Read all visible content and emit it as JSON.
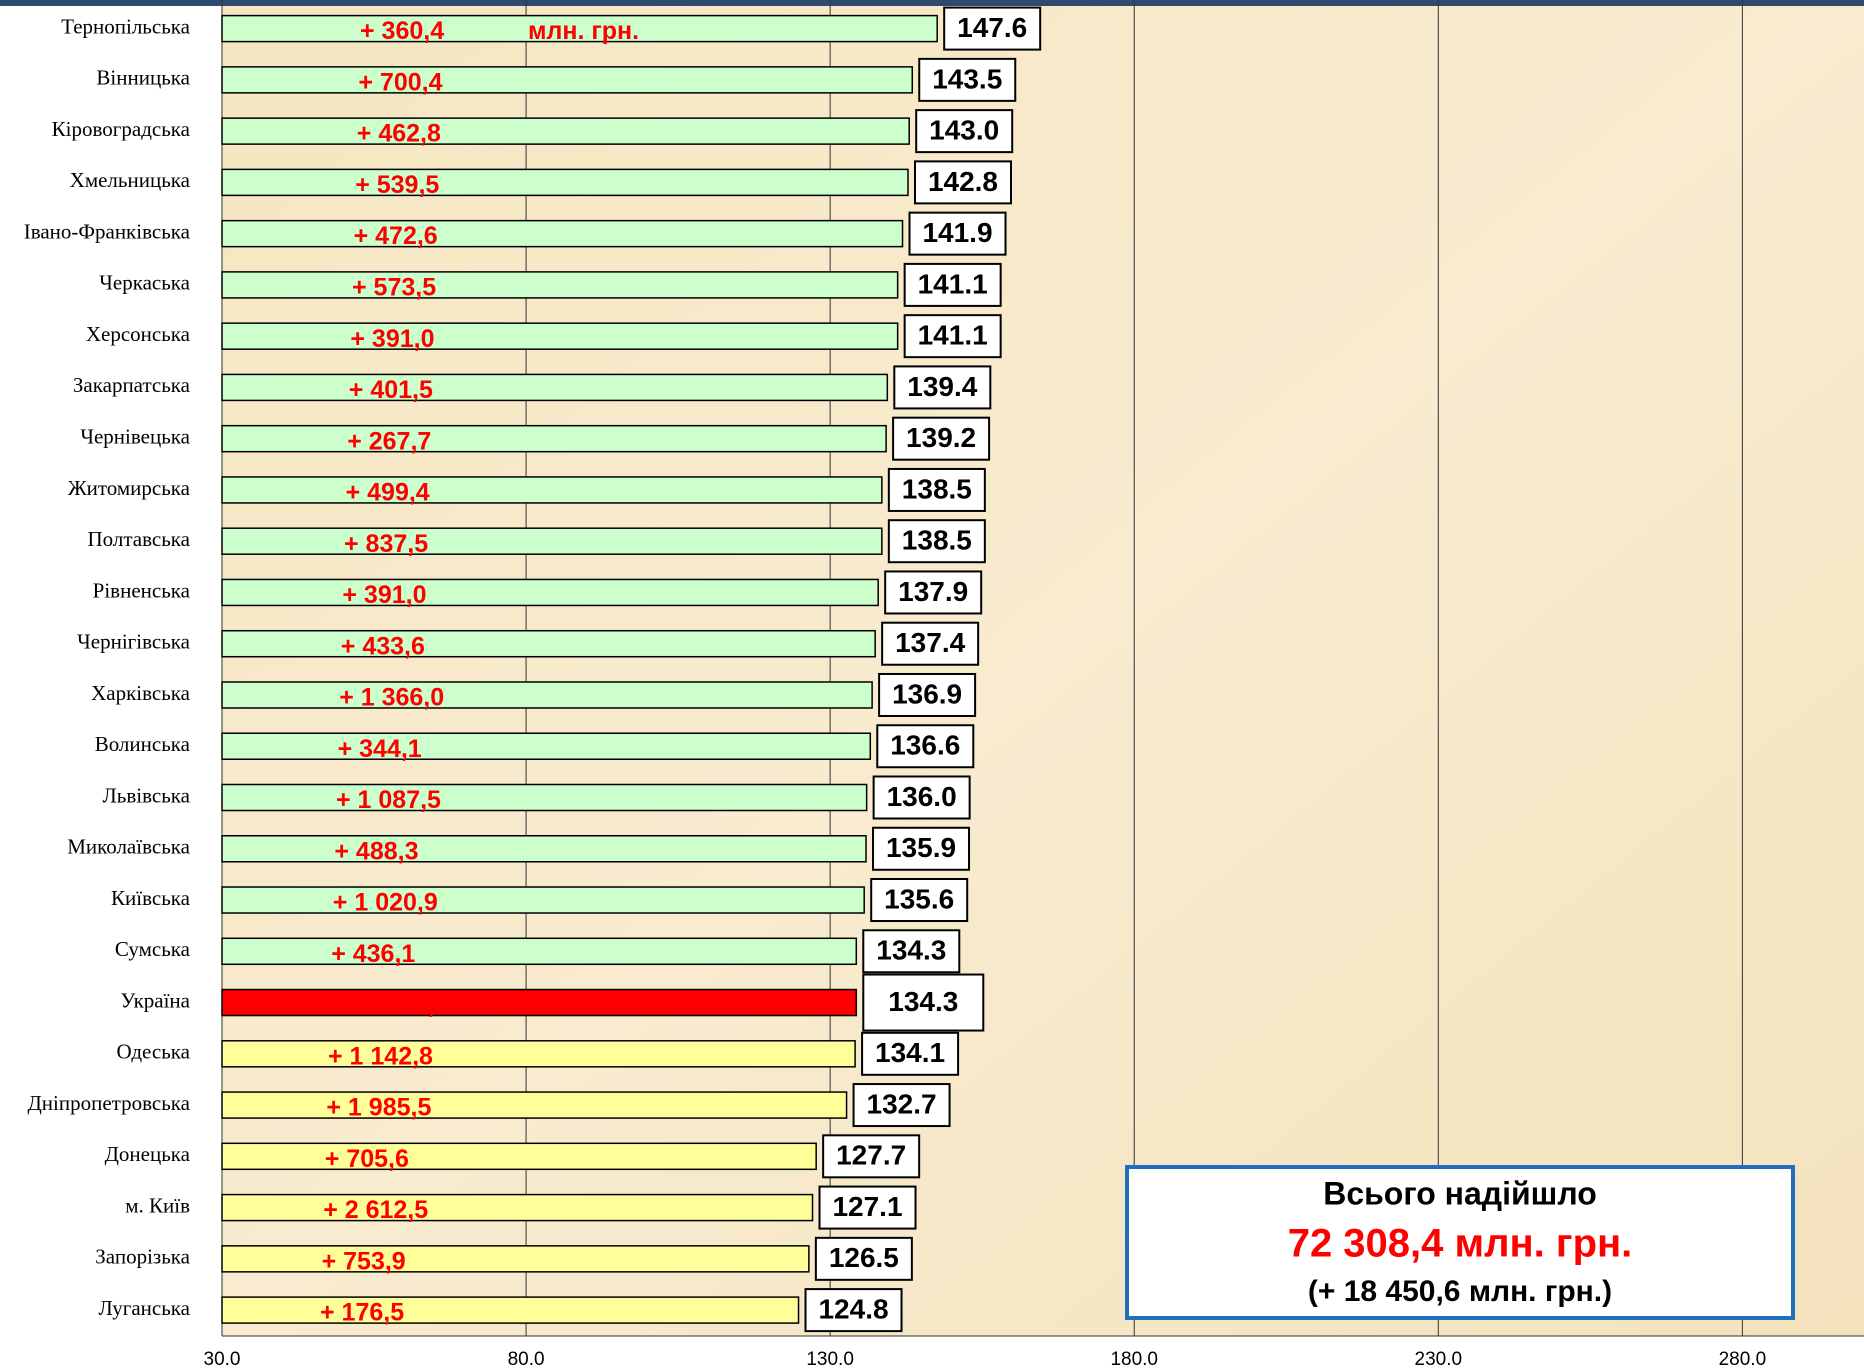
{
  "chart_data": {
    "type": "hbar",
    "categories": [
      "Тернопільська",
      "Вінницька",
      "Кіровоградська",
      "Хмельницька",
      "Івано-Франківська",
      "Черкаська",
      "Херсонська",
      "Закарпатська",
      "Чернівецька",
      "Житомирська",
      "Полтавська",
      "Рівненська",
      "Чернігівська",
      "Харківська",
      "Волинська",
      "Львівська",
      "Миколаївська",
      "Київська",
      "Сумська",
      "Україна",
      "Одеська",
      "Дніпропетровська",
      "Донецька",
      "м. Київ",
      "Запорізька",
      "Луганська"
    ],
    "values": [
      147.6,
      143.5,
      143.0,
      142.8,
      141.9,
      141.1,
      141.1,
      139.4,
      139.2,
      138.5,
      138.5,
      137.9,
      137.4,
      136.9,
      136.6,
      136.0,
      135.9,
      135.6,
      134.3,
      134.3,
      134.1,
      132.7,
      127.7,
      127.1,
      126.5,
      124.8
    ],
    "value_labels": [
      "147.6",
      "143.5",
      "143.0",
      "142.8",
      "141.9",
      "141.1",
      "141.1",
      "139.4",
      "139.2",
      "138.5",
      "138.5",
      "137.9",
      "137.4",
      "136.9",
      "136.6",
      "136.0",
      "135.9",
      "135.6",
      "134.3",
      "134.3",
      "134.1",
      "132.7",
      "127.7",
      "127.1",
      "126.5",
      "124.8"
    ],
    "increments": [
      "+ 360,4",
      "+ 700,4",
      "+ 462,8",
      "+ 539,5",
      "+ 472,6",
      "+ 573,5",
      "+ 391,0",
      "+ 401,5",
      "+ 267,7",
      "+ 499,4",
      "+ 837,5",
      "+ 391,0",
      "+ 433,6",
      "+ 1 366,0",
      "+ 344,1",
      "+ 1 087,5",
      "+ 488,3",
      "+ 1 020,9",
      "+ 436,1",
      "+ 18 450,6",
      "+ 1 142,8",
      "+ 1 985,5",
      "+ 705,6",
      "+ 2 612,5",
      "+ 753,9",
      "+ 176,5"
    ],
    "colors": [
      "#ccffcc",
      "#ccffcc",
      "#ccffcc",
      "#ccffcc",
      "#ccffcc",
      "#ccffcc",
      "#ccffcc",
      "#ccffcc",
      "#ccffcc",
      "#ccffcc",
      "#ccffcc",
      "#ccffcc",
      "#ccffcc",
      "#ccffcc",
      "#ccffcc",
      "#ccffcc",
      "#ccffcc",
      "#ccffcc",
      "#ccffcc",
      "#ff0000",
      "#ffff99",
      "#ffff99",
      "#ffff99",
      "#ffff99",
      "#ffff99",
      "#ffff99"
    ],
    "unit_annotation": "млн. грн.",
    "xlim": [
      30,
      300
    ],
    "xticks": [
      {
        "value": 30,
        "label": "30.0"
      },
      {
        "value": 80,
        "label": "80.0"
      },
      {
        "value": 130,
        "label": "130.0"
      },
      {
        "value": 180,
        "label": "180.0"
      },
      {
        "value": 230,
        "label": "230.0"
      },
      {
        "value": 280,
        "label": "280.0"
      }
    ],
    "grid": true,
    "summary": {
      "title": "Всього надійшло",
      "total": "72 308,4 млн. грн.",
      "increment": "(+ 18 450,6  млн. грн.)"
    }
  }
}
